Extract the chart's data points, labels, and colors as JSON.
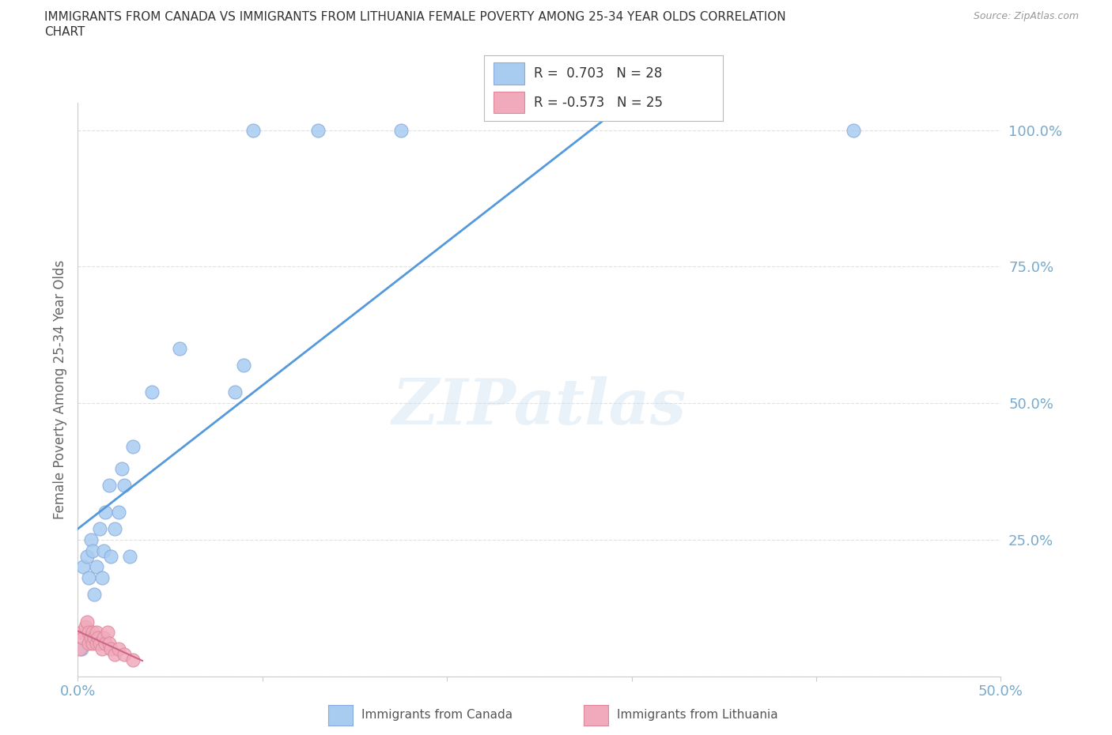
{
  "title_line1": "IMMIGRANTS FROM CANADA VS IMMIGRANTS FROM LITHUANIA FEMALE POVERTY AMONG 25-34 YEAR OLDS CORRELATION",
  "title_line2": "CHART",
  "source": "Source: ZipAtlas.com",
  "ylabel": "Female Poverty Among 25-34 Year Olds",
  "xlim": [
    0.0,
    0.5
  ],
  "ylim": [
    0.0,
    1.05
  ],
  "canada_R": 0.703,
  "canada_N": 28,
  "lithuania_R": -0.573,
  "lithuania_N": 25,
  "canada_color": "#a8ccf0",
  "canada_line_color": "#5599dd",
  "canada_edge_color": "#88aadd",
  "lithuania_color": "#f0aabc",
  "lithuania_line_color": "#cc6688",
  "lithuania_edge_color": "#dd8899",
  "background_color": "#ffffff",
  "grid_color": "#dddddd",
  "watermark": "ZIPatlas",
  "tick_color": "#77aacc",
  "canada_x": [
    0.002,
    0.003,
    0.005,
    0.006,
    0.007,
    0.008,
    0.009,
    0.01,
    0.012,
    0.013,
    0.014,
    0.015,
    0.017,
    0.018,
    0.02,
    0.022,
    0.024,
    0.025,
    0.028,
    0.03,
    0.04,
    0.055,
    0.085,
    0.09,
    0.095,
    0.13,
    0.175,
    0.42
  ],
  "canada_y": [
    0.05,
    0.2,
    0.22,
    0.18,
    0.25,
    0.23,
    0.15,
    0.2,
    0.27,
    0.18,
    0.23,
    0.3,
    0.35,
    0.22,
    0.27,
    0.3,
    0.38,
    0.35,
    0.22,
    0.42,
    0.52,
    0.6,
    0.52,
    0.57,
    1.0,
    1.0,
    1.0,
    1.0
  ],
  "lithuania_x": [
    0.001,
    0.002,
    0.003,
    0.004,
    0.005,
    0.006,
    0.006,
    0.007,
    0.008,
    0.008,
    0.009,
    0.01,
    0.01,
    0.011,
    0.012,
    0.013,
    0.014,
    0.015,
    0.016,
    0.017,
    0.018,
    0.02,
    0.022,
    0.025,
    0.03
  ],
  "lithuania_y": [
    0.05,
    0.08,
    0.07,
    0.09,
    0.1,
    0.06,
    0.08,
    0.07,
    0.06,
    0.08,
    0.07,
    0.06,
    0.08,
    0.07,
    0.06,
    0.05,
    0.07,
    0.06,
    0.08,
    0.06,
    0.05,
    0.04,
    0.05,
    0.04,
    0.03
  ]
}
